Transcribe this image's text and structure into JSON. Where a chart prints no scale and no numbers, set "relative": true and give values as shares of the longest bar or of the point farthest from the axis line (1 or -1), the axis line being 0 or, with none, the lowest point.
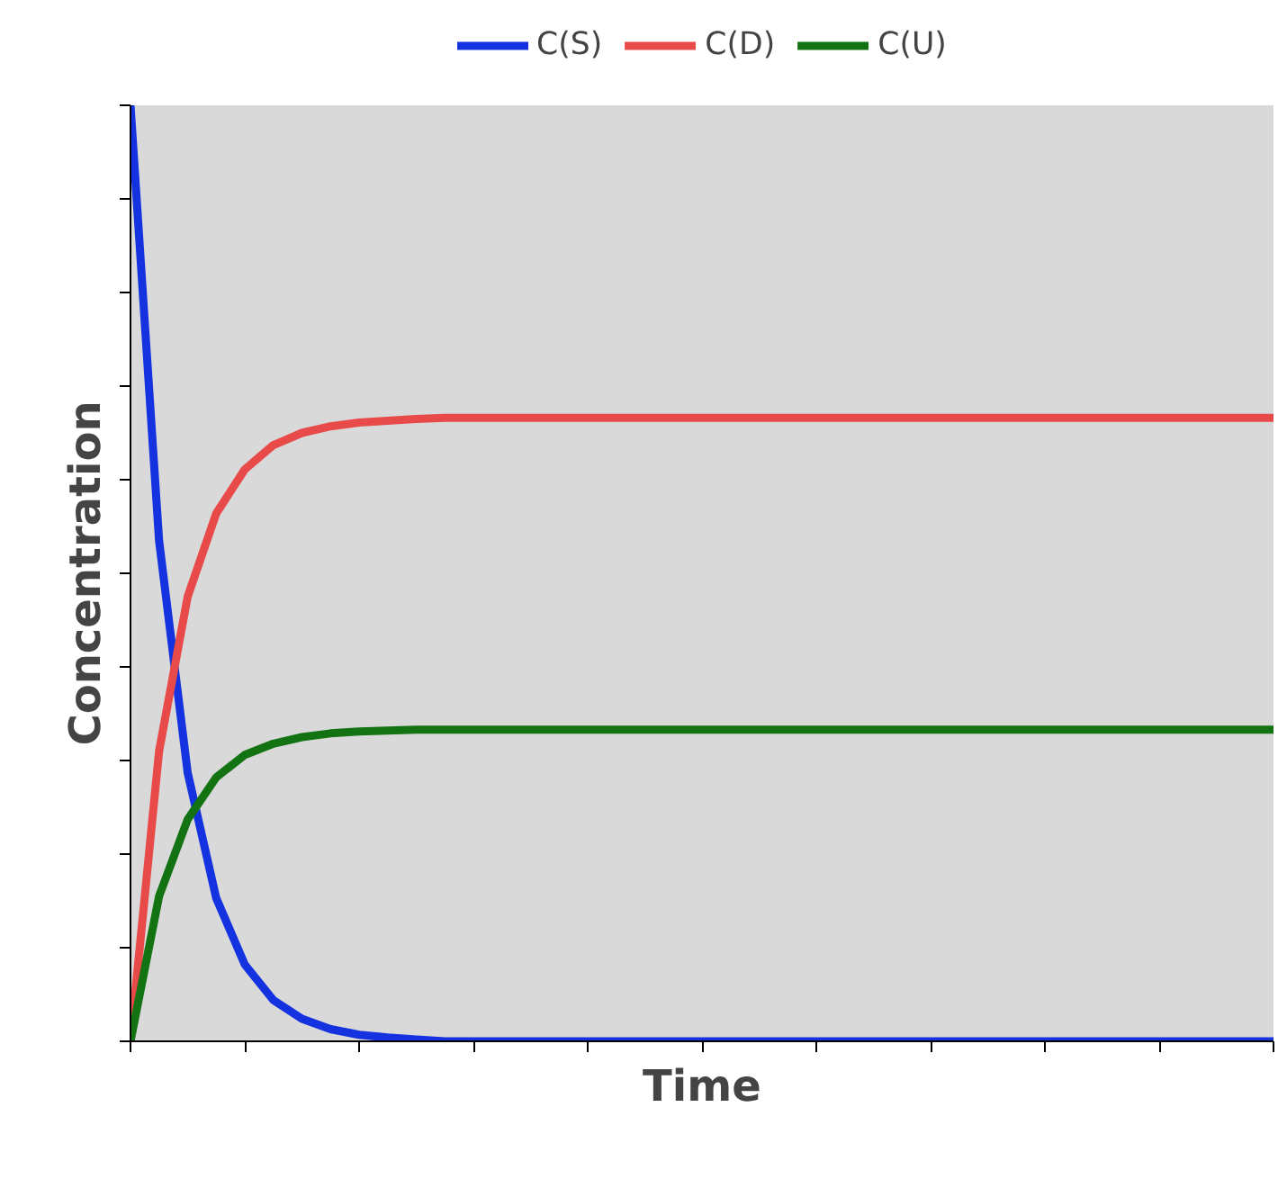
{
  "chart_data": {
    "type": "line",
    "xlabel": "Time",
    "ylabel": "Concentration",
    "relative": true,
    "legend": "top",
    "categories": [
      null,
      null,
      null,
      null,
      null,
      null,
      null,
      null,
      null,
      null,
      null,
      null,
      null,
      null,
      null,
      null,
      null,
      null,
      null,
      null,
      null,
      null,
      null,
      null,
      null,
      null,
      null,
      null,
      null,
      null,
      null,
      null,
      null,
      null,
      null,
      null,
      null,
      null,
      null,
      null,
      null
    ],
    "series": [
      {
        "name": "C(S)",
        "color": "#1432e0",
        "values": [
          1,
          0.535,
          0.287,
          0.153,
          0.082,
          0.044,
          0.024,
          0.013,
          0.007,
          0.004,
          0.002,
          0,
          0,
          0,
          0,
          0,
          0,
          0,
          0,
          0,
          0,
          0,
          0,
          0,
          0,
          0,
          0,
          0,
          0,
          0,
          0,
          0,
          0,
          0,
          0,
          0,
          0,
          0,
          0,
          0,
          0
        ]
      },
      {
        "name": "C(D)",
        "color": "#e84a4a",
        "values": [
          0,
          0.31,
          0.475,
          0.564,
          0.611,
          0.637,
          0.65,
          0.657,
          0.661,
          0.663,
          0.665,
          0.666,
          0.666,
          0.666,
          0.666,
          0.666,
          0.666,
          0.666,
          0.666,
          0.666,
          0.666,
          0.666,
          0.666,
          0.666,
          0.666,
          0.666,
          0.666,
          0.666,
          0.666,
          0.666,
          0.666,
          0.666,
          0.666,
          0.666,
          0.666,
          0.666,
          0.666,
          0.666,
          0.666,
          0.666,
          0.666
        ]
      },
      {
        "name": "C(U)",
        "color": "#137313",
        "values": [
          0,
          0.155,
          0.237,
          0.282,
          0.306,
          0.318,
          0.325,
          0.329,
          0.331,
          0.332,
          0.333,
          0.333,
          0.333,
          0.333,
          0.333,
          0.333,
          0.333,
          0.333,
          0.333,
          0.333,
          0.333,
          0.333,
          0.333,
          0.333,
          0.333,
          0.333,
          0.333,
          0.333,
          0.333,
          0.333,
          0.333,
          0.333,
          0.333,
          0.333,
          0.333,
          0.333,
          0.333,
          0.333,
          0.333,
          0.333,
          0.333
        ]
      }
    ]
  }
}
